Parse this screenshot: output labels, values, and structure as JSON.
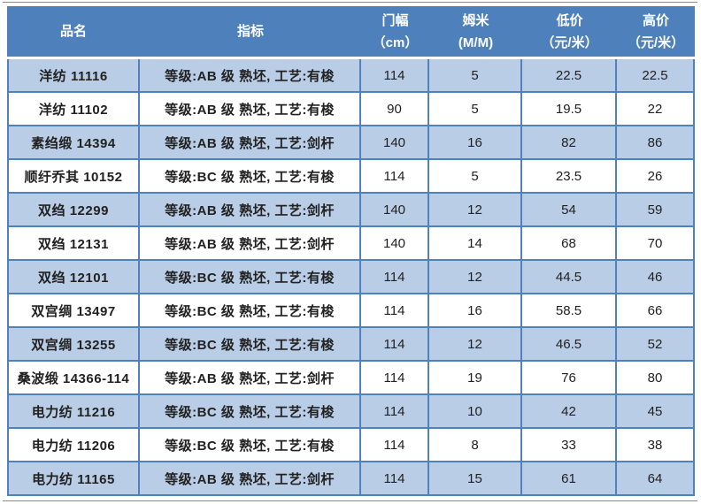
{
  "colors": {
    "header_bg": "#4e81bc",
    "header_text": "#ffffff",
    "alt_row_bg": "#b9cde6",
    "grid_line": "#4f81bd",
    "frame_line": "#8a8a8a",
    "body_text": "#212121"
  },
  "table": {
    "columns": [
      {
        "label": "品名",
        "sub": ""
      },
      {
        "label": "指标",
        "sub": ""
      },
      {
        "label": "门幅",
        "sub": "（cm）"
      },
      {
        "label": "姆米",
        "sub": "(M/M)"
      },
      {
        "label": "低价",
        "sub": "（元/米）"
      },
      {
        "label": "高价",
        "sub": "（元/米）"
      }
    ],
    "rows": [
      [
        "洋纺 11116",
        "等级:AB 级  熟坯, 工艺:有梭",
        "114",
        "5",
        "22.5",
        "22.5"
      ],
      [
        "洋纺 11102",
        "等级:AB 级  熟坯, 工艺:有梭",
        "90",
        "5",
        "19.5",
        "22"
      ],
      [
        "素绉缎 14394",
        "等级:AB 级  熟坯, 工艺:剑杆",
        "140",
        "16",
        "82",
        "86"
      ],
      [
        "顺纡乔其 10152",
        "等级:BC 级  熟坯, 工艺:有梭",
        "114",
        "5",
        "23.5",
        "26"
      ],
      [
        "双绉 12299",
        "等级:AB 级  熟坯, 工艺:剑杆",
        "140",
        "12",
        "54",
        "59"
      ],
      [
        "双绉 12131",
        "等级:AB 级  熟坯, 工艺:剑杆",
        "140",
        "14",
        "68",
        "70"
      ],
      [
        "双绉 12101",
        "等级:BC 级  熟坯, 工艺:有梭",
        "114",
        "12",
        "44.5",
        "46"
      ],
      [
        "双宫绸 13497",
        "等级:BC 级  熟坯, 工艺:有梭",
        "114",
        "16",
        "58.5",
        "66"
      ],
      [
        "双宫绸 13255",
        "等级:BC 级  熟坯, 工艺:有梭",
        "114",
        "12",
        "46.5",
        "52"
      ],
      [
        "桑波缎 14366-114",
        "等级:AB 级  熟坯, 工艺:剑杆",
        "114",
        "19",
        "76",
        "80"
      ],
      [
        "电力纺 11216",
        "等级:BC 级  熟坯, 工艺:有梭",
        "114",
        "10",
        "42",
        "45"
      ],
      [
        "电力纺 11206",
        "等级:BC 级  熟坯, 工艺:有梭",
        "114",
        "8",
        "33",
        "38"
      ],
      [
        "电力纺 11165",
        "等级:AB 级  熟坯, 工艺:剑杆",
        "114",
        "15",
        "61",
        "64"
      ]
    ]
  }
}
